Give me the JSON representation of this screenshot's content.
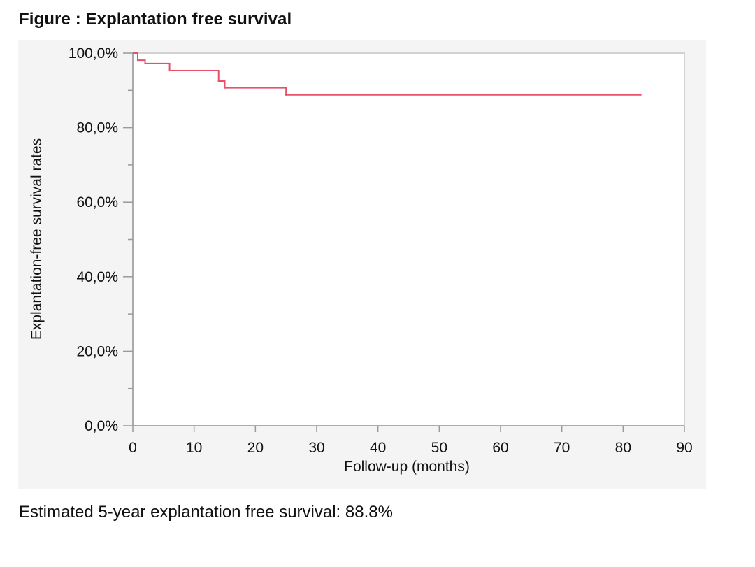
{
  "figure": {
    "title": "Figure : Explantation free survival",
    "caption": "Estimated 5-year explantation free survival: 88.8%"
  },
  "chart_data": {
    "type": "line",
    "step": true,
    "title": "",
    "xlabel": "Follow-up (months)",
    "ylabel": "Explantation-free survival rates",
    "xlim": [
      0,
      90
    ],
    "ylim": [
      0,
      100
    ],
    "x_ticks": [
      0,
      10,
      20,
      30,
      40,
      50,
      60,
      70,
      80,
      90
    ],
    "x_tick_labels": [
      "0",
      "10",
      "20",
      "30",
      "40",
      "50",
      "60",
      "70",
      "80",
      "90"
    ],
    "y_ticks": [
      0,
      20,
      40,
      60,
      80,
      100
    ],
    "y_tick_labels": [
      "0,0%",
      "20,0%",
      "40,0%",
      "60,0%",
      "80,0%",
      "100,0%"
    ],
    "grid": false,
    "line_color": "#e8516a",
    "series": [
      {
        "x": [
          0,
          0.8,
          2,
          6,
          14,
          15,
          25,
          83
        ],
        "y": [
          100,
          98.1,
          97.2,
          95.3,
          92.5,
          90.7,
          88.8,
          88.8
        ]
      }
    ]
  }
}
